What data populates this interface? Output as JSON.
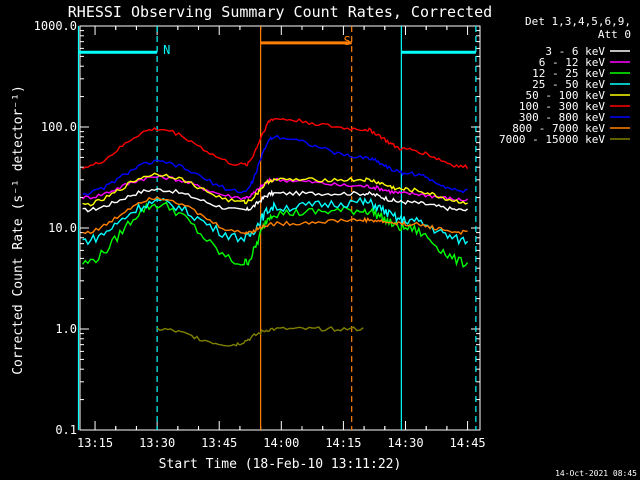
{
  "chart_data": {
    "type": "line",
    "title": "RHESSI Observing Summary Count Rates, Corrected",
    "xlabel": "Start Time (18-Feb-10 13:11:22)",
    "ylabel": "Corrected Count Rate (s⁻¹ detector⁻¹)",
    "yscale": "log",
    "ylim": [
      0.1,
      1000
    ],
    "xlim": [
      "13:11:22",
      "14:48:00"
    ],
    "y_ticks": [
      "0.1",
      "1.0",
      "10.0",
      "100.0",
      "1000.0"
    ],
    "x_ticks": [
      "13:15",
      "13:30",
      "13:45",
      "14:00",
      "14:15",
      "14:30",
      "14:45"
    ],
    "legend": {
      "header": "Det 1,3,4,5,6,9,",
      "attenuator": "Att 0",
      "position": "top-right outside"
    },
    "series": [
      {
        "name": "3 - 6 keV",
        "color": "#ffffff",
        "values": [
          [
            13.2,
            15
          ],
          [
            13.5,
            24
          ],
          [
            13.85,
            15
          ],
          [
            13.97,
            22
          ],
          [
            14.33,
            22
          ],
          [
            14.5,
            18
          ],
          [
            14.75,
            15
          ]
        ]
      },
      {
        "name": "6 - 12 keV",
        "color": "#ff00ff",
        "values": [
          [
            13.2,
            20
          ],
          [
            13.5,
            32
          ],
          [
            13.85,
            20
          ],
          [
            13.97,
            30
          ],
          [
            14.33,
            26
          ],
          [
            14.5,
            22
          ],
          [
            14.75,
            19
          ]
        ]
      },
      {
        "name": "12 - 25 keV",
        "color": "#00ff00",
        "values": [
          [
            13.2,
            4.5
          ],
          [
            13.5,
            17
          ],
          [
            13.85,
            4.5
          ],
          [
            13.97,
            14
          ],
          [
            14.33,
            15
          ],
          [
            14.5,
            10
          ],
          [
            14.75,
            4.5
          ]
        ]
      },
      {
        "name": "25 - 50 keV",
        "color": "#00ffff",
        "values": [
          [
            13.2,
            7.5
          ],
          [
            13.5,
            18
          ],
          [
            13.85,
            8
          ],
          [
            13.97,
            16
          ],
          [
            14.33,
            18
          ],
          [
            14.5,
            12
          ],
          [
            14.75,
            7.5
          ]
        ]
      },
      {
        "name": "50 - 100 keV",
        "color": "#ffff00",
        "values": [
          [
            13.2,
            17
          ],
          [
            13.5,
            34
          ],
          [
            13.85,
            18
          ],
          [
            13.97,
            30
          ],
          [
            14.33,
            30
          ],
          [
            14.5,
            24
          ],
          [
            14.75,
            18
          ]
        ]
      },
      {
        "name": "100 - 300 keV",
        "color": "#ff0000",
        "values": [
          [
            13.2,
            40
          ],
          [
            13.5,
            95
          ],
          [
            13.85,
            42
          ],
          [
            13.97,
            120
          ],
          [
            14.33,
            95
          ],
          [
            14.5,
            60
          ],
          [
            14.75,
            40
          ]
        ]
      },
      {
        "name": "300 - 800 keV",
        "color": "#0000ff",
        "values": [
          [
            13.2,
            22
          ],
          [
            13.5,
            45
          ],
          [
            13.85,
            23
          ],
          [
            13.97,
            80
          ],
          [
            14.33,
            50
          ],
          [
            14.5,
            35
          ],
          [
            14.75,
            23
          ]
        ]
      },
      {
        "name": "800 - 7000 keV",
        "color": "#ff8000",
        "values": [
          [
            13.2,
            9
          ],
          [
            13.5,
            20
          ],
          [
            13.85,
            9
          ],
          [
            13.97,
            11
          ],
          [
            14.33,
            12
          ],
          [
            14.5,
            11
          ],
          [
            14.75,
            9
          ]
        ]
      },
      {
        "name": "7000 - 15000 keV",
        "color": "#808000",
        "values": [
          [
            13.5,
            1.0
          ],
          [
            13.8,
            0.7
          ],
          [
            13.97,
            1.0
          ],
          [
            14.33,
            1.0
          ]
        ]
      }
    ],
    "flags": [
      {
        "label": "N",
        "color": "#00ffff",
        "value": 550,
        "ranges": [
          [
            "13:11",
            "13:30"
          ],
          [
            "14:29",
            "14:47"
          ]
        ]
      },
      {
        "label": "S",
        "color": "#ff8000",
        "value": 680,
        "ranges": [
          [
            "13:55",
            "14:17"
          ]
        ]
      }
    ],
    "markers": [
      {
        "color": "#00ffff",
        "style": "solid",
        "x": "13:11"
      },
      {
        "color": "#00ffff",
        "style": "dashed",
        "x": "13:30"
      },
      {
        "color": "#ff8000",
        "style": "solid",
        "x": "13:55"
      },
      {
        "color": "#ff8000",
        "style": "dashed",
        "x": "14:17"
      },
      {
        "color": "#00ffff",
        "style": "solid",
        "x": "14:29"
      },
      {
        "color": "#00ffff",
        "style": "dashed",
        "x": "14:47"
      }
    ],
    "timestamp": "14-Oct-2021 08:45"
  }
}
